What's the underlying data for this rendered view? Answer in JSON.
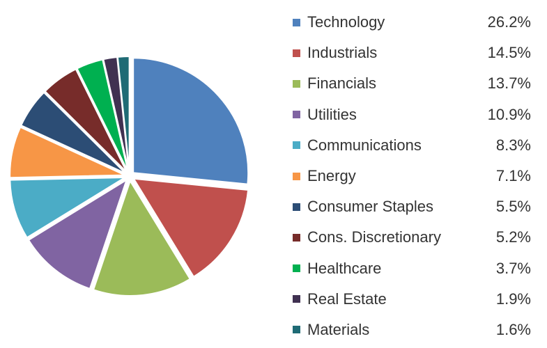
{
  "chart_data": {
    "type": "pie",
    "title": "",
    "legend_position": "right",
    "slices": [
      {
        "label": "Technology",
        "value": 26.2,
        "value_label": "26.2%",
        "color": "#4F81BD"
      },
      {
        "label": "Industrials",
        "value": 14.5,
        "value_label": "14.5%",
        "color": "#C0504D"
      },
      {
        "label": "Financials",
        "value": 13.7,
        "value_label": "13.7%",
        "color": "#9BBB59"
      },
      {
        "label": "Utilities",
        "value": 10.9,
        "value_label": "10.9%",
        "color": "#8064A2"
      },
      {
        "label": "Communications",
        "value": 8.3,
        "value_label": "8.3%",
        "color": "#4BACC6"
      },
      {
        "label": "Energy",
        "value": 7.1,
        "value_label": "7.1%",
        "color": "#F79646"
      },
      {
        "label": "Consumer Staples",
        "value": 5.5,
        "value_label": "5.5%",
        "color": "#2C4D75"
      },
      {
        "label": "Cons. Discretionary",
        "value": 5.2,
        "value_label": "5.2%",
        "color": "#772C2A"
      },
      {
        "label": "Healthcare",
        "value": 3.7,
        "value_label": "3.7%",
        "color": "#00B050"
      },
      {
        "label": "Real Estate",
        "value": 1.9,
        "value_label": "1.9%",
        "color": "#403151"
      },
      {
        "label": "Materials",
        "value": 1.6,
        "value_label": "1.6%",
        "color": "#1F6B75"
      }
    ]
  }
}
